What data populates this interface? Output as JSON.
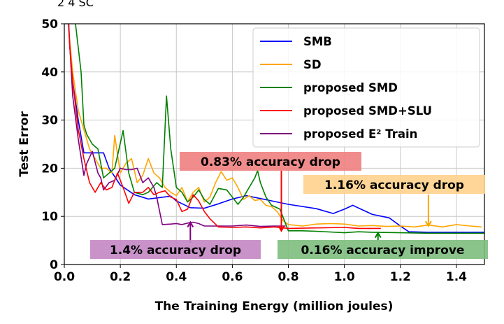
{
  "chart_data": {
    "type": "line",
    "title": "",
    "top_fragment": "2 4 SC",
    "xlabel": "The Training Energy (million joules)",
    "ylabel": "Test Error",
    "xlim": [
      0,
      1.5
    ],
    "ylim": [
      0,
      50
    ],
    "xticks": [
      0.0,
      0.2,
      0.4,
      0.6,
      0.8,
      1.0,
      1.2,
      1.4
    ],
    "xtick_labels": [
      "0.0",
      "0.2",
      "0.4",
      "0.6",
      "0.8",
      "1.0",
      "1.2",
      "1.4"
    ],
    "yticks": [
      0,
      10,
      20,
      30,
      40,
      50
    ],
    "ytick_labels": [
      "0",
      "10",
      "20",
      "30",
      "40",
      "50"
    ],
    "grid": true,
    "legend_position": "top-right",
    "series": [
      {
        "name": "SMB",
        "color": "#0000ff",
        "points": [
          [
            0.015,
            51
          ],
          [
            0.02,
            45
          ],
          [
            0.03,
            38
          ],
          [
            0.05,
            30
          ],
          [
            0.07,
            23.2
          ],
          [
            0.1,
            23.2
          ],
          [
            0.14,
            23.2
          ],
          [
            0.16,
            20
          ],
          [
            0.2,
            16.5
          ],
          [
            0.25,
            14.5
          ],
          [
            0.3,
            13.6
          ],
          [
            0.38,
            14.2
          ],
          [
            0.4,
            13.2
          ],
          [
            0.45,
            11.8
          ],
          [
            0.5,
            11.7
          ],
          [
            0.55,
            12.6
          ],
          [
            0.6,
            13.6
          ],
          [
            0.65,
            14.3
          ],
          [
            0.7,
            13.7
          ],
          [
            0.75,
            13.1
          ],
          [
            0.8,
            12.5
          ],
          [
            0.9,
            11.6
          ],
          [
            0.96,
            10.6
          ],
          [
            1.0,
            11.5
          ],
          [
            1.03,
            12.3
          ],
          [
            1.07,
            11.2
          ],
          [
            1.1,
            10.4
          ],
          [
            1.16,
            9.7
          ],
          [
            1.2,
            8.0
          ],
          [
            1.23,
            6.8
          ],
          [
            1.3,
            6.7
          ],
          [
            1.4,
            6.7
          ],
          [
            1.5,
            6.7
          ]
        ]
      },
      {
        "name": "SD",
        "color": "#ffa500",
        "points": [
          [
            0.015,
            50
          ],
          [
            0.02,
            46
          ],
          [
            0.03,
            40
          ],
          [
            0.05,
            32
          ],
          [
            0.07,
            28
          ],
          [
            0.09,
            24
          ],
          [
            0.11,
            22
          ],
          [
            0.13,
            20
          ],
          [
            0.15,
            20
          ],
          [
            0.17,
            19
          ],
          [
            0.18,
            26.8
          ],
          [
            0.2,
            19
          ],
          [
            0.22,
            21
          ],
          [
            0.24,
            22
          ],
          [
            0.26,
            17
          ],
          [
            0.28,
            18.5
          ],
          [
            0.3,
            22
          ],
          [
            0.32,
            19
          ],
          [
            0.34,
            18
          ],
          [
            0.36,
            16
          ],
          [
            0.38,
            15
          ],
          [
            0.4,
            14.3
          ],
          [
            0.42,
            16
          ],
          [
            0.44,
            13
          ],
          [
            0.46,
            15
          ],
          [
            0.48,
            16
          ],
          [
            0.5,
            13
          ],
          [
            0.52,
            14
          ],
          [
            0.54,
            17
          ],
          [
            0.56,
            19.3
          ],
          [
            0.58,
            17.5
          ],
          [
            0.6,
            18
          ],
          [
            0.62,
            16
          ],
          [
            0.64,
            13.5
          ],
          [
            0.66,
            14.3
          ],
          [
            0.68,
            13.3
          ],
          [
            0.7,
            13.5
          ],
          [
            0.72,
            12.3
          ],
          [
            0.74,
            12
          ],
          [
            0.76,
            11
          ],
          [
            0.78,
            9.2
          ],
          [
            0.8,
            8.3
          ],
          [
            0.85,
            8.0
          ],
          [
            0.9,
            8.4
          ],
          [
            0.95,
            8.5
          ],
          [
            1.0,
            8.4
          ],
          [
            1.05,
            8.0
          ],
          [
            1.1,
            8.1
          ],
          [
            1.15,
            7.9
          ],
          [
            1.2,
            8.0
          ],
          [
            1.25,
            7.8
          ],
          [
            1.3,
            8.2
          ],
          [
            1.35,
            7.8
          ],
          [
            1.4,
            8.3
          ],
          [
            1.45,
            8.0
          ],
          [
            1.49,
            7.8
          ]
        ]
      },
      {
        "name": "proposed SMD",
        "color": "#008000",
        "points": [
          [
            0.04,
            50
          ],
          [
            0.06,
            40
          ],
          [
            0.07,
            29
          ],
          [
            0.08,
            27
          ],
          [
            0.1,
            25
          ],
          [
            0.12,
            24
          ],
          [
            0.14,
            18
          ],
          [
            0.16,
            19
          ],
          [
            0.18,
            20
          ],
          [
            0.21,
            27.8
          ],
          [
            0.23,
            19
          ],
          [
            0.25,
            15
          ],
          [
            0.28,
            14.5
          ],
          [
            0.3,
            15
          ],
          [
            0.33,
            17
          ],
          [
            0.35,
            16
          ],
          [
            0.365,
            35
          ],
          [
            0.38,
            24
          ],
          [
            0.4,
            16
          ],
          [
            0.42,
            15
          ],
          [
            0.44,
            13
          ],
          [
            0.46,
            14
          ],
          [
            0.48,
            15.5
          ],
          [
            0.5,
            13.5
          ],
          [
            0.52,
            12.5
          ],
          [
            0.55,
            15.8
          ],
          [
            0.58,
            15.5
          ],
          [
            0.6,
            14
          ],
          [
            0.62,
            12.5
          ],
          [
            0.64,
            14
          ],
          [
            0.66,
            16
          ],
          [
            0.68,
            18
          ],
          [
            0.69,
            19.5
          ],
          [
            0.7,
            17
          ],
          [
            0.72,
            14
          ],
          [
            0.74,
            12.3
          ],
          [
            0.77,
            11.5
          ],
          [
            0.8,
            7.0
          ],
          [
            0.85,
            7.0
          ],
          [
            0.9,
            6.9
          ],
          [
            1.0,
            6.6
          ],
          [
            1.05,
            6.8
          ],
          [
            1.1,
            6.7
          ],
          [
            1.2,
            6.6
          ],
          [
            1.3,
            6.5
          ],
          [
            1.4,
            6.5
          ],
          [
            1.5,
            6.5
          ]
        ]
      },
      {
        "name": "proposed SMD+SLU",
        "color": "#ff0000",
        "points": [
          [
            0.015,
            50
          ],
          [
            0.02,
            45
          ],
          [
            0.03,
            38
          ],
          [
            0.05,
            28
          ],
          [
            0.07,
            22
          ],
          [
            0.09,
            17
          ],
          [
            0.11,
            15
          ],
          [
            0.13,
            17
          ],
          [
            0.15,
            15.5
          ],
          [
            0.17,
            16
          ],
          [
            0.19,
            19
          ],
          [
            0.21,
            16
          ],
          [
            0.23,
            12.7
          ],
          [
            0.25,
            15
          ],
          [
            0.28,
            15
          ],
          [
            0.3,
            16
          ],
          [
            0.32,
            14.5
          ],
          [
            0.34,
            15
          ],
          [
            0.36,
            15.3
          ],
          [
            0.38,
            14
          ],
          [
            0.4,
            13.5
          ],
          [
            0.42,
            11
          ],
          [
            0.44,
            11.5
          ],
          [
            0.46,
            14.5
          ],
          [
            0.48,
            13.2
          ],
          [
            0.5,
            11
          ],
          [
            0.52,
            9.5
          ],
          [
            0.55,
            7.8
          ],
          [
            0.6,
            7.7
          ],
          [
            0.65,
            7.8
          ],
          [
            0.7,
            7.6
          ],
          [
            0.75,
            7.8
          ],
          [
            0.8,
            7.5
          ],
          [
            0.9,
            7.6
          ],
          [
            1.0,
            7.7
          ],
          [
            1.05,
            7.5
          ],
          [
            1.13,
            7.5
          ]
        ]
      },
      {
        "name": "proposed E² Train",
        "color": "#800080",
        "points": [
          [
            0.015,
            50
          ],
          [
            0.02,
            45
          ],
          [
            0.03,
            35
          ],
          [
            0.05,
            26
          ],
          [
            0.07,
            18.5
          ],
          [
            0.08,
            21
          ],
          [
            0.1,
            23.5
          ],
          [
            0.12,
            19
          ],
          [
            0.13,
            18
          ],
          [
            0.14,
            15.5
          ],
          [
            0.16,
            17
          ],
          [
            0.18,
            17.5
          ],
          [
            0.2,
            20
          ],
          [
            0.22,
            19.7
          ],
          [
            0.24,
            19.7
          ],
          [
            0.26,
            20
          ],
          [
            0.28,
            17
          ],
          [
            0.3,
            18
          ],
          [
            0.32,
            16
          ],
          [
            0.33,
            14
          ],
          [
            0.35,
            8.3
          ],
          [
            0.38,
            8.4
          ],
          [
            0.4,
            8.5
          ],
          [
            0.42,
            8.3
          ],
          [
            0.44,
            8.6
          ],
          [
            0.46,
            8.8
          ],
          [
            0.48,
            8.5
          ],
          [
            0.5,
            8.0
          ],
          [
            0.55,
            8.0
          ],
          [
            0.6,
            8.0
          ],
          [
            0.65,
            8.2
          ],
          [
            0.7,
            7.9
          ],
          [
            0.75,
            8.0
          ],
          [
            0.79,
            8.0
          ]
        ]
      }
    ],
    "annotations": [
      {
        "text": "0.83% accuracy drop",
        "box_color": "#f08080",
        "arrow_x": 0.775,
        "arrow_from_y": 19.5,
        "arrow_to_y": 7.0,
        "arrow_color": "#ff0000"
      },
      {
        "text": "1.16% accuracy drop",
        "box_color": "#ffd28c",
        "arrow_x": 1.3,
        "arrow_from_y": 14.5,
        "arrow_to_y": 8.0,
        "arrow_color": "#ffa500"
      },
      {
        "text": "1.4% accuracy drop",
        "box_color": "#c387c3",
        "arrow_x": 0.45,
        "arrow_from_y": 4.5,
        "arrow_to_y": 8.8,
        "arrow_color": "#800080"
      },
      {
        "text": "0.16% accuracy improve",
        "box_color": "#7dbe7d",
        "arrow_x": 1.12,
        "arrow_from_y": 5.0,
        "arrow_to_y": 6.6,
        "arrow_color": "#008000"
      }
    ]
  }
}
